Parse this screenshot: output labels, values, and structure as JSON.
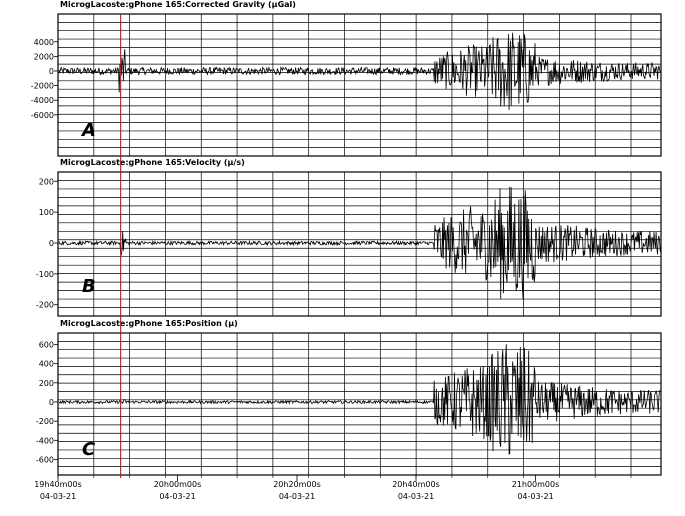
{
  "chart_data": [
    {
      "type": "line",
      "title": "MicrogLacoste:gPhone 165:Corrected Gravity (µGal)",
      "panel_label": "A",
      "yticks": [
        4000,
        2000,
        0,
        -2000,
        -4000,
        -6000
      ],
      "ylim": [
        -7800,
        5800
      ],
      "noise_amplitude": 500,
      "event_amplitude": 3000,
      "peak_amplitude": 6000,
      "series_color": "#000000"
    },
    {
      "type": "line",
      "title": "MicrogLacoste:gPhone 165:Velocity (µ/s)",
      "panel_label": "B",
      "yticks": [
        200,
        100,
        0,
        -100,
        -200
      ],
      "ylim": [
        -230,
        230
      ],
      "noise_amplitude": 6,
      "event_amplitude": 40,
      "peak_amplitude": 200,
      "series_color": "#000000"
    },
    {
      "type": "line",
      "title": "MicrogLacoste:gPhone 165:Position (µ)",
      "panel_label": "C",
      "yticks": [
        600,
        400,
        200,
        0,
        -200,
        -400,
        -600
      ],
      "ylim": [
        -720,
        720
      ],
      "noise_amplitude": 15,
      "event_amplitude": 30,
      "peak_amplitude": 650,
      "series_color": "#000000"
    }
  ],
  "x_axis": {
    "ticks": [
      {
        "time": "19h40m00s",
        "date": "04-03-21"
      },
      {
        "time": "20h00m00s",
        "date": "04-03-21"
      },
      {
        "time": "20h20m00s",
        "date": "04-03-21"
      },
      {
        "time": "20h40m00s",
        "date": "04-03-21"
      },
      {
        "time": "21h00m00s",
        "date": "04-03-21"
      }
    ]
  },
  "marker": {
    "time": "19h50m30s",
    "color": "#cc0000"
  },
  "grid": true
}
